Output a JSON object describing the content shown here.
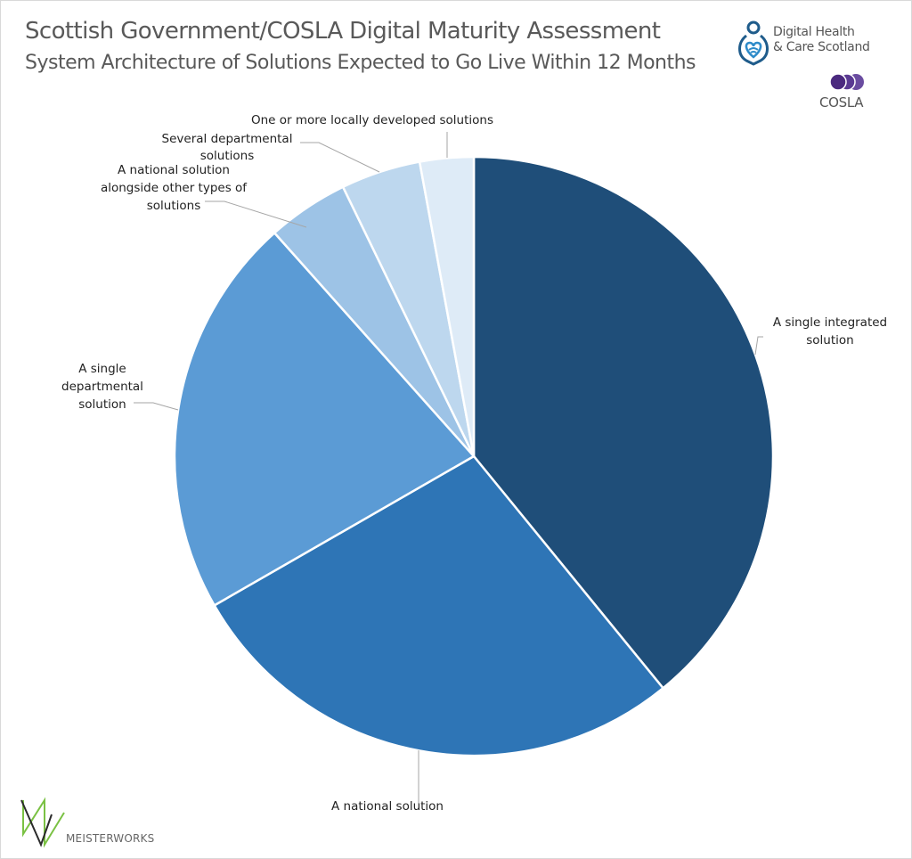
{
  "header": {
    "title": "Scottish Government/COSLA Digital Maturity Assessment",
    "subtitle": "System Architecture of Solutions Expected to Go Live Within 12 Months"
  },
  "logos": {
    "dhcs_line1": "Digital Health",
    "dhcs_line2": "& Care Scotland",
    "cosla": "COSLA",
    "meisterworks": "MEISTERWORKS"
  },
  "colors": {
    "slice1": "#1f4e79",
    "slice2": "#2e75b6",
    "slice3": "#5b9bd5",
    "slice4": "#9dc3e6",
    "slice5": "#bdd7ee",
    "slice6": "#deebf7",
    "cosla_purple": "#4b2a7f",
    "dhcs_blue": "#1f5c8b",
    "meister_green": "#7ac143",
    "meister_dark": "#2b2b2b"
  },
  "chart_data": {
    "type": "pie",
    "title": "Scottish Government/COSLA Digital Maturity Assessment",
    "subtitle": "System Architecture of Solutions Expected to Go Live Within 12 Months",
    "categories": [
      "A single integrated solution",
      "A national solution",
      "A single departmental solution",
      "A national solution alongside other types of solutions",
      "Several departmental solutions",
      "One or more locally developed solutions"
    ],
    "values": [
      39.1,
      27.6,
      21.7,
      4.4,
      4.3,
      2.9
    ],
    "unit": "% (estimated from slice angles)",
    "start_angle": "12 o'clock, clockwise",
    "legend": "none (data labels with leader lines)"
  },
  "labels": {
    "l1a": "A single integrated",
    "l1b": "solution",
    "l2": "A national solution",
    "l3a": "A single",
    "l3b": "departmental",
    "l3c": "solution",
    "l4a": "A national solution",
    "l4b": "alongside other types of",
    "l4c": "solutions",
    "l5a": "Several departmental",
    "l5b": "solutions",
    "l6": "One or more locally developed solutions"
  }
}
